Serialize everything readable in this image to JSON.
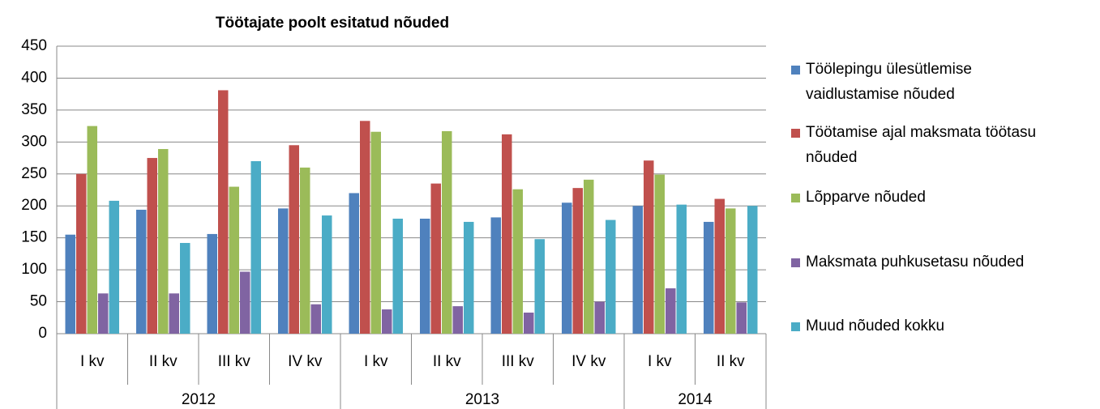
{
  "chart_data": {
    "type": "bar",
    "title": "Töötajate poolt esitatud nõuded",
    "categories": [
      "I kv",
      "II kv",
      "III kv",
      "IV kv",
      "I kv",
      "II kv",
      "III kv",
      "IV kv",
      "I kv",
      "II kv"
    ],
    "category_groups": [
      {
        "label": "2012",
        "size": 4
      },
      {
        "label": "2013",
        "size": 4
      },
      {
        "label": "2014",
        "size": 2
      }
    ],
    "series": [
      {
        "name": "Töölepingu ülesütlemise vaidlustamise nõuded",
        "color": "#4f81bd",
        "values": [
          155,
          194,
          156,
          196,
          220,
          180,
          182,
          205,
          200,
          175
        ]
      },
      {
        "name": "Töötamise ajal maksmata töötasu nõuded",
        "color": "#c0504d",
        "values": [
          250,
          275,
          381,
          295,
          333,
          235,
          312,
          228,
          271,
          211
        ]
      },
      {
        "name": "Lõpparve nõuded",
        "color": "#9bbb59",
        "values": [
          325,
          289,
          230,
          260,
          316,
          317,
          226,
          241,
          249,
          196
        ]
      },
      {
        "name": "Maksmata puhkusetasu nõuded",
        "color": "#8064a2",
        "values": [
          63,
          63,
          97,
          46,
          38,
          43,
          33,
          50,
          71,
          49
        ]
      },
      {
        "name": "Muud nõuded kokku",
        "color": "#4bacc6",
        "values": [
          208,
          142,
          270,
          185,
          180,
          175,
          148,
          178,
          202,
          200
        ]
      }
    ],
    "ylim": [
      0,
      450
    ],
    "yticks": [
      0,
      50,
      100,
      150,
      200,
      250,
      300,
      350,
      400,
      450
    ],
    "grid": true,
    "legend": "right"
  }
}
